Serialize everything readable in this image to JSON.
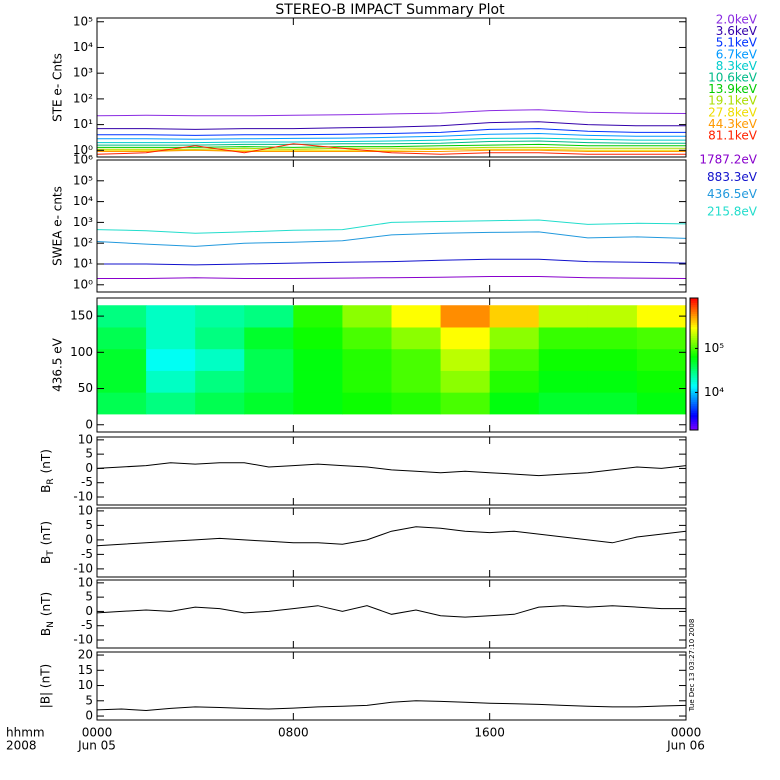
{
  "chart_data": [
    {
      "type": "line",
      "title": "STEREO-B IMPACT Summary Plot",
      "ylabel": "STE e- Cnts",
      "log": true,
      "ylim": [
        0.55,
        140000
      ],
      "yticks": [
        {
          "value": 1,
          "label": "10⁰"
        },
        {
          "value": 10,
          "label": "10¹"
        },
        {
          "value": 100,
          "label": "10²"
        },
        {
          "value": 1000,
          "label": "10³"
        },
        {
          "value": 10000,
          "label": "10⁴"
        },
        {
          "value": 100000,
          "label": "10⁵"
        }
      ],
      "xlim": [
        0,
        24
      ],
      "x": [
        0,
        2,
        4,
        6,
        8,
        10,
        12,
        14,
        16,
        18,
        20,
        22,
        24
      ],
      "series": [
        {
          "name": "2.0keV",
          "color": "#8a2be2",
          "values": [
            22,
            23,
            22,
            22,
            23,
            24,
            26,
            28,
            35,
            38,
            30,
            28,
            27
          ]
        },
        {
          "name": "3.6keV",
          "color": "#3300aa",
          "values": [
            7,
            7,
            6.5,
            7,
            7,
            7.5,
            8,
            9,
            12,
            13,
            10,
            9,
            9
          ]
        },
        {
          "name": "5.1keV",
          "color": "#0033ff",
          "values": [
            4,
            4,
            3.8,
            4,
            4,
            4.2,
            4.5,
            5,
            6.5,
            7,
            5.5,
            5,
            5
          ]
        },
        {
          "name": "6.7keV",
          "color": "#0099ff",
          "values": [
            2.8,
            2.8,
            2.7,
            2.8,
            2.9,
            3,
            3.2,
            3.5,
            4.2,
            4.5,
            3.8,
            3.5,
            3.5
          ]
        },
        {
          "name": "8.3keV",
          "color": "#00cccc",
          "values": [
            2,
            2,
            2,
            2.1,
            2.1,
            2.2,
            2.3,
            2.5,
            2.9,
            3,
            2.7,
            2.5,
            2.5
          ]
        },
        {
          "name": "10.6keV",
          "color": "#00bb88",
          "values": [
            1.6,
            1.6,
            1.6,
            1.7,
            1.7,
            1.8,
            1.8,
            1.9,
            2.2,
            2.3,
            2,
            1.9,
            1.9
          ]
        },
        {
          "name": "13.9keV",
          "color": "#00cc00",
          "values": [
            1.3,
            1.3,
            1.3,
            1.4,
            1.3,
            1.4,
            1.4,
            1.5,
            1.6,
            1.7,
            1.5,
            1.5,
            1.5
          ]
        },
        {
          "name": "19.1keV",
          "color": "#aadd00",
          "values": [
            1.1,
            1.1,
            1.1,
            1.2,
            1.1,
            1.2,
            1.2,
            1.2,
            1.3,
            1.3,
            1.2,
            1.2,
            1.2
          ]
        },
        {
          "name": "27.8keV",
          "color": "#eedd00",
          "values": [
            1,
            1,
            1,
            1,
            1,
            1,
            1,
            1.1,
            1.1,
            1.1,
            1,
            1,
            1
          ]
        },
        {
          "name": "44.3keV",
          "color": "#ff9900",
          "values": [
            0.9,
            0.9,
            1,
            0.9,
            0.9,
            0.9,
            0.9,
            0.9,
            1,
            1,
            0.9,
            0.9,
            0.9
          ]
        },
        {
          "name": "81.1keV",
          "color": "#ff2200",
          "values": [
            0.7,
            0.8,
            1.5,
            0.8,
            1.8,
            1.2,
            0.8,
            0.7,
            0.8,
            0.8,
            0.7,
            0.7,
            0.7
          ]
        }
      ]
    },
    {
      "type": "line",
      "ylabel": "SWEA e- cnts",
      "log": true,
      "ylim": [
        0.45,
        1000000
      ],
      "yticks": [
        {
          "value": 1,
          "label": "10⁰"
        },
        {
          "value": 10,
          "label": "10¹"
        },
        {
          "value": 100,
          "label": "10²"
        },
        {
          "value": 1000,
          "label": "10³"
        },
        {
          "value": 10000,
          "label": "10⁴"
        },
        {
          "value": 100000,
          "label": "10⁵"
        },
        {
          "value": 1000000,
          "label": "10⁶"
        }
      ],
      "xlim": [
        0,
        24
      ],
      "x": [
        0,
        2,
        4,
        6,
        8,
        10,
        12,
        14,
        16,
        18,
        20,
        22,
        24
      ],
      "series": [
        {
          "name": "1787.2eV",
          "color": "#8800cc",
          "values": [
            2,
            2,
            2.2,
            2,
            2,
            2.1,
            2.2,
            2.3,
            2.5,
            2.5,
            2.2,
            2.1,
            2
          ]
        },
        {
          "name": "883.3eV",
          "color": "#1111cc",
          "values": [
            10,
            10,
            9,
            10,
            11,
            12,
            13,
            15,
            17,
            17,
            13,
            12,
            11
          ]
        },
        {
          "name": "436.5eV",
          "color": "#2299dd",
          "values": [
            120,
            90,
            70,
            100,
            110,
            130,
            250,
            300,
            330,
            350,
            180,
            200,
            170
          ]
        },
        {
          "name": "215.8eV",
          "color": "#22ddcc",
          "values": [
            450,
            400,
            300,
            350,
            420,
            450,
            1000,
            1100,
            1200,
            1300,
            800,
            900,
            850
          ]
        }
      ]
    },
    {
      "type": "heatmap",
      "ylabel": "436.5 eV",
      "log": false,
      "ylim": [
        -10,
        175
      ],
      "yticks": [
        0,
        50,
        100,
        150
      ],
      "xlim": [
        0,
        24
      ],
      "x_edges": [
        0,
        2,
        4,
        6,
        8,
        10,
        12,
        14,
        16,
        18,
        20,
        22,
        24
      ],
      "y_edges": [
        15,
        45,
        75,
        105,
        135,
        165
      ],
      "colormap": "rainbow",
      "zlim": [
        1400,
        1400000
      ],
      "zticks": [
        {
          "value": 10000,
          "label": "10⁴"
        },
        {
          "value": 100000,
          "label": "10⁵"
        }
      ],
      "z": [
        [
          40000,
          50000,
          50000,
          40000,
          30000
        ],
        [
          30000,
          20000,
          15000,
          20000,
          20000
        ],
        [
          40000,
          30000,
          20000,
          30000,
          25000
        ],
        [
          50000,
          40000,
          40000,
          50000,
          30000
        ],
        [
          60000,
          60000,
          60000,
          70000,
          80000
        ],
        [
          70000,
          80000,
          80000,
          100000,
          150000
        ],
        [
          80000,
          100000,
          100000,
          150000,
          300000
        ],
        [
          100000,
          150000,
          200000,
          300000,
          600000
        ],
        [
          60000,
          80000,
          100000,
          150000,
          400000
        ],
        [
          50000,
          60000,
          70000,
          90000,
          200000
        ],
        [
          50000,
          60000,
          70000,
          90000,
          200000
        ],
        [
          60000,
          70000,
          80000,
          100000,
          300000
        ]
      ]
    },
    {
      "type": "line",
      "ylabel": {
        "main": "B",
        "sub": "R",
        "unit": "(nT)"
      },
      "log": false,
      "ylim": [
        -12.8,
        11
      ],
      "yticks": [
        -10,
        -5,
        0,
        5,
        10
      ],
      "xlim": [
        0,
        24
      ],
      "x": [
        0,
        1,
        2,
        3,
        4,
        5,
        6,
        7,
        8,
        9,
        10,
        11,
        12,
        13,
        14,
        15,
        16,
        17,
        18,
        19,
        20,
        21,
        22,
        23,
        24
      ],
      "series": [
        {
          "color": "#000000",
          "values": [
            0,
            0.5,
            1,
            2,
            1.5,
            2,
            2,
            0.5,
            1,
            1.5,
            1,
            0.5,
            -0.5,
            -1,
            -1.5,
            -1,
            -1.5,
            -2,
            -2.5,
            -2,
            -1.5,
            -0.5,
            0.5,
            0,
            1
          ]
        }
      ]
    },
    {
      "type": "line",
      "ylabel": {
        "main": "B",
        "sub": "T",
        "unit": "(nT)"
      },
      "log": false,
      "ylim": [
        -12.8,
        11
      ],
      "yticks": [
        -10,
        -5,
        0,
        5,
        10
      ],
      "xlim": [
        0,
        24
      ],
      "x": [
        0,
        1,
        2,
        3,
        4,
        5,
        6,
        7,
        8,
        9,
        10,
        11,
        12,
        13,
        14,
        15,
        16,
        17,
        18,
        19,
        20,
        21,
        22,
        23,
        24
      ],
      "series": [
        {
          "color": "#000000",
          "values": [
            -2,
            -1.5,
            -1,
            -0.5,
            0,
            0.5,
            0,
            -0.5,
            -1,
            -1,
            -1.5,
            0,
            3,
            4.5,
            4,
            3,
            2.5,
            3,
            2,
            1,
            0,
            -1,
            1,
            2,
            3
          ]
        }
      ]
    },
    {
      "type": "line",
      "ylabel": {
        "main": "B",
        "sub": "N",
        "unit": "(nT)"
      },
      "log": false,
      "ylim": [
        -12.8,
        11
      ],
      "yticks": [
        -10,
        -5,
        0,
        5,
        10
      ],
      "xlim": [
        0,
        24
      ],
      "x": [
        0,
        1,
        2,
        3,
        4,
        5,
        6,
        7,
        8,
        9,
        10,
        11,
        12,
        13,
        14,
        15,
        16,
        17,
        18,
        19,
        20,
        21,
        22,
        23,
        24
      ],
      "series": [
        {
          "color": "#000000",
          "values": [
            -0.5,
            0,
            0.5,
            0,
            1.5,
            1,
            -0.5,
            0,
            1,
            2,
            0,
            2,
            -1,
            0.5,
            -1.5,
            -2,
            -1.5,
            -1,
            1.5,
            2,
            1.5,
            2,
            1.5,
            1,
            1
          ]
        }
      ]
    },
    {
      "type": "line",
      "ylabel": "|B| (nT)",
      "log": false,
      "ylim": [
        -1.3,
        21
      ],
      "yticks": [
        0,
        5,
        10,
        15,
        20
      ],
      "xlim": [
        0,
        24
      ],
      "x": [
        0,
        1,
        2,
        3,
        4,
        5,
        6,
        7,
        8,
        9,
        10,
        11,
        12,
        13,
        14,
        15,
        16,
        17,
        18,
        19,
        20,
        21,
        22,
        23,
        24
      ],
      "series": [
        {
          "color": "#000000",
          "values": [
            2,
            2.3,
            1.8,
            2.5,
            3,
            2.8,
            2.5,
            2.3,
            2.6,
            3,
            3.2,
            3.5,
            4.5,
            5,
            4.8,
            4.5,
            4.2,
            4,
            3.8,
            3.5,
            3.2,
            3,
            3,
            3.3,
            3.5
          ]
        }
      ],
      "xticks": [
        {
          "value": 0,
          "label": "0000"
        },
        {
          "value": 8,
          "label": "0800"
        },
        {
          "value": 16,
          "label": "1600"
        },
        {
          "value": 24,
          "label": "0000"
        }
      ],
      "xtick_sublabels": [
        "Jun 05",
        null,
        null,
        "Jun 06"
      ],
      "xlabel": "hhmm",
      "xlabel2": "2008",
      "timestamp": "Tue Dec 13 03:27:10 2008"
    }
  ]
}
